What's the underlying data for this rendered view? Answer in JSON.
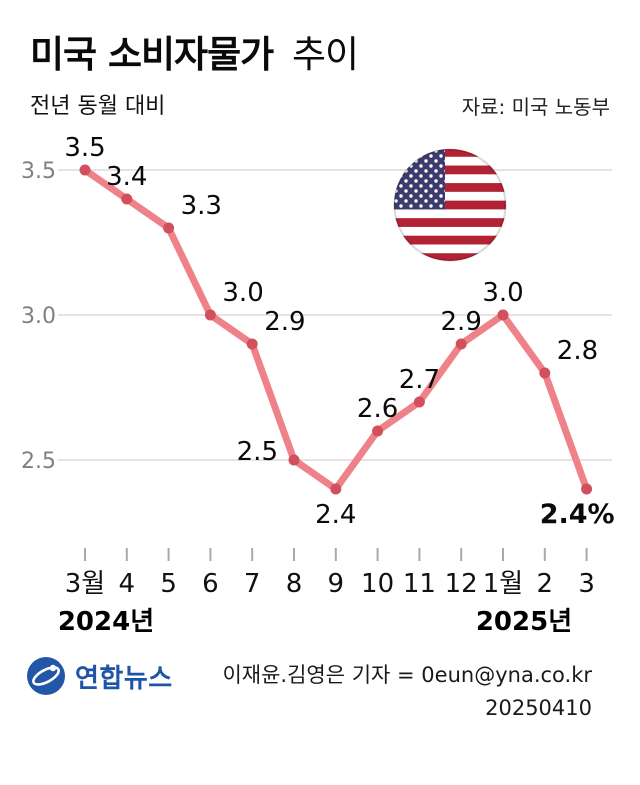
{
  "header": {
    "title_bold": "미국 소비자물가",
    "title_light": "추이",
    "subtitle": "전년 동월 대비",
    "source": "자료: 미국 노동부"
  },
  "chart_data": {
    "type": "line",
    "categories": [
      "3월",
      "4",
      "5",
      "6",
      "7",
      "8",
      "9",
      "10",
      "11",
      "12",
      "1월",
      "2",
      "3"
    ],
    "values": [
      3.5,
      3.4,
      3.3,
      3.0,
      2.9,
      2.5,
      2.4,
      2.6,
      2.7,
      2.9,
      3.0,
      2.8,
      2.4
    ],
    "labels": [
      "3.5",
      "3.4",
      "3.3",
      "3.0",
      "2.9",
      "2.5",
      "2.4",
      "2.6",
      "2.7",
      "2.9",
      "3.0",
      "2.8",
      "2.4%"
    ],
    "label_positions": [
      "above",
      "above",
      "above-right",
      "above-right",
      "above-right",
      "left",
      "below",
      "above",
      "above",
      "above",
      "above",
      "above-right",
      "below-end"
    ],
    "emphasis_index": 12,
    "yticks": [
      3.5,
      3.0,
      2.5
    ],
    "ytick_labels": [
      "3.5",
      "3.0",
      "2.5"
    ],
    "ylim": [
      2.2,
      3.65
    ],
    "year_labels": [
      {
        "label": "2024년",
        "category_index": 0
      },
      {
        "label": "2025년",
        "category_index": 10
      }
    ],
    "title": "미국 소비자물가 추이",
    "xlabel": "",
    "ylabel": "전년 동월 대비 (%)",
    "grid": true,
    "line_color": "#ef8289",
    "dot_color": "#d24f5e",
    "grid_color": "#c9c9c9",
    "tick_color": "#a9a9a9",
    "ylabel_color": "#808080",
    "label_color": "#0a0a0a"
  },
  "icons": {
    "flag": "us-flag-icon",
    "logo": "yonhap-logo-icon"
  },
  "footer": {
    "logo_text": "연합뉴스",
    "credit": "이재윤.김영은 기자 = 0eun@yna.co.kr",
    "date": "20250410"
  }
}
